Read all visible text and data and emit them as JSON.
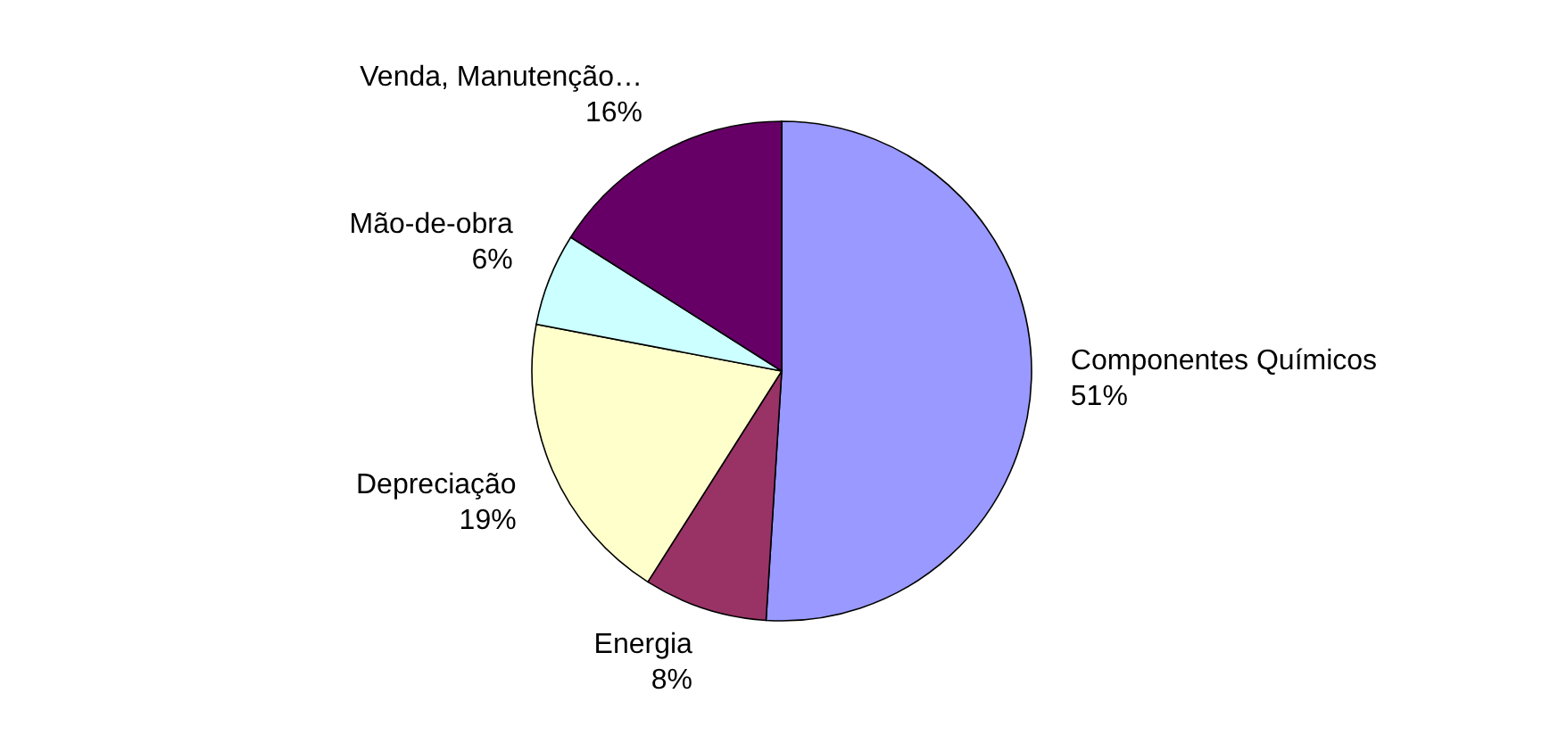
{
  "chart_data": {
    "type": "pie",
    "categories": [
      "Componentes Químicos",
      "Energia",
      "Depreciação",
      "Mão-de-obra",
      "Venda, Manutenção…"
    ],
    "values": [
      51,
      8,
      19,
      6,
      16
    ],
    "colors": [
      "#9999ff",
      "#993366",
      "#ffffcc",
      "#ccffff",
      "#660066"
    ],
    "value_labels": [
      "51%",
      "8%",
      "19%",
      "6%",
      "16%"
    ]
  }
}
